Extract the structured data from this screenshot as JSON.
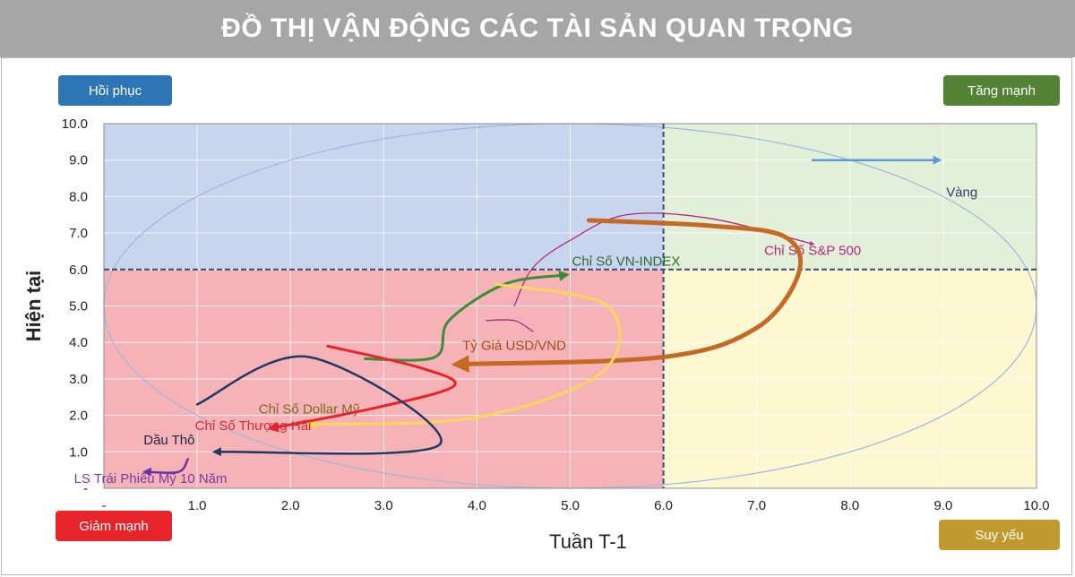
{
  "header": {
    "title": "ĐỒ THỊ VẬN ĐỘNG CÁC TÀI SẢN QUAN TRỌNG"
  },
  "quadrants": {
    "top_left": {
      "label": "Hồi phục",
      "color": "#2e75b6"
    },
    "top_right": {
      "label": "Tăng mạnh",
      "color": "#548235"
    },
    "bottom_left": {
      "label": "Giảm mạnh",
      "color": "#e8242b"
    },
    "bottom_right": {
      "label": "Suy yếu",
      "color": "#c09a2e"
    }
  },
  "chart_data": {
    "type": "line",
    "xlabel": "Tuần T-1",
    "ylabel": "Hiện tại",
    "xlim": [
      0,
      10
    ],
    "ylim": [
      0,
      10
    ],
    "x_ticks": [
      "-",
      "1.0",
      "2.0",
      "3.0",
      "4.0",
      "5.0",
      "6.0",
      "7.0",
      "8.0",
      "9.0",
      "10.0"
    ],
    "y_ticks": [
      "-",
      "1.0",
      "2.0",
      "3.0",
      "4.0",
      "5.0",
      "6.0",
      "7.0",
      "8.0",
      "9.0",
      "10.0"
    ],
    "x_tick_values": [
      0,
      1,
      2,
      3,
      4,
      5,
      6,
      7,
      8,
      9,
      10
    ],
    "y_tick_values": [
      0,
      1,
      2,
      3,
      4,
      5,
      6,
      7,
      8,
      9,
      10
    ],
    "divider": {
      "x": 6.0,
      "y": 6.0
    },
    "quadrant_fills": {
      "top_left": "#c8d5ee",
      "top_right": "#e2efd9",
      "bottom_left": "#f5b3b8",
      "bottom_right": "#fdf7d2"
    },
    "grid": true,
    "series": [
      {
        "name": "Vàng",
        "color": "#5b9bd5",
        "width": 2.5,
        "points": [
          [
            7.6,
            9.0
          ],
          [
            8.95,
            9.0
          ]
        ],
        "label_pos": [
          9.2,
          8.0
        ],
        "label_color": "#2f3f6f"
      },
      {
        "name": "Chỉ Số S&P 500",
        "color": "#b5287e",
        "width": 1.3,
        "points": [
          [
            4.4,
            5.0
          ],
          [
            4.6,
            6.05
          ],
          [
            5.0,
            6.8
          ],
          [
            5.6,
            7.5
          ],
          [
            6.5,
            7.4
          ],
          [
            7.6,
            6.7
          ]
        ],
        "extra_path": [
          [
            4.1,
            4.6
          ],
          [
            4.4,
            4.6
          ],
          [
            4.6,
            4.3
          ]
        ],
        "label_pos": [
          7.6,
          6.4
        ],
        "label_color": "#b5287e"
      },
      {
        "name": "Chỉ Số VN-INDEX",
        "color": "#3e8c3a",
        "width": 3,
        "points": [
          [
            2.8,
            3.55
          ],
          [
            3.55,
            3.6
          ],
          [
            3.7,
            4.6
          ],
          [
            4.3,
            5.6
          ],
          [
            4.95,
            5.85
          ]
        ],
        "label_pos": [
          5.6,
          6.1
        ],
        "label_color": "#2f6a2c"
      },
      {
        "name": "Tỷ Giá USD/VND",
        "color": "#c46a24",
        "width": 5,
        "points": [
          [
            5.2,
            7.35
          ],
          [
            6.5,
            7.2
          ],
          [
            7.3,
            6.9
          ],
          [
            7.45,
            5.9
          ],
          [
            7.0,
            4.4
          ],
          [
            6.0,
            3.6
          ],
          [
            3.8,
            3.4
          ]
        ],
        "label_pos": [
          4.4,
          3.8
        ],
        "label_color": "#a44d12"
      },
      {
        "name": "Chỉ Số Dollar Mỹ",
        "color": "#fad75a",
        "width": 3,
        "points": [
          [
            4.2,
            5.6
          ],
          [
            5.4,
            5.0
          ],
          [
            5.35,
            3.2
          ],
          [
            4.0,
            1.95
          ],
          [
            2.2,
            1.75
          ]
        ],
        "label_pos": [
          2.2,
          2.05
        ],
        "label_color": "#7a6a1f"
      },
      {
        "name": "Chỉ Số Thượng Hải",
        "color": "#e8242b",
        "width": 3,
        "points": [
          [
            2.4,
            3.9
          ],
          [
            3.4,
            3.3
          ],
          [
            3.75,
            2.8
          ],
          [
            2.9,
            2.2
          ],
          [
            1.8,
            1.65
          ]
        ],
        "label_pos": [
          1.6,
          1.6
        ],
        "label_color": "#d42a33"
      },
      {
        "name": "Dầu Thô",
        "color": "#1f3864",
        "width": 2.5,
        "points": [
          [
            1.0,
            2.3
          ],
          [
            2.2,
            3.6
          ],
          [
            3.6,
            1.2
          ],
          [
            1.2,
            1.0
          ]
        ],
        "label_pos": [
          0.7,
          1.2
        ],
        "label_color": "#1f2444"
      },
      {
        "name": "LS Trái Phiếu Mỹ 10 Năm",
        "color": "#7030a0",
        "width": 2.5,
        "points": [
          [
            0.9,
            0.8
          ],
          [
            0.8,
            0.45
          ],
          [
            0.45,
            0.45
          ]
        ],
        "label_pos": [
          0.5,
          0.15
        ],
        "label_color": "#7a3aa0"
      }
    ]
  }
}
